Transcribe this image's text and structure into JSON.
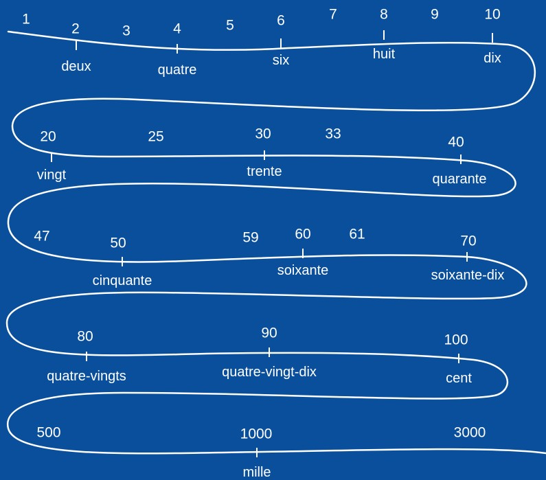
{
  "colors": {
    "background": "#0a4f9c",
    "foreground": "#ffffff"
  },
  "numbers": [
    "1",
    "2",
    "3",
    "4",
    "5",
    "6",
    "7",
    "8",
    "9",
    "10",
    "20",
    "25",
    "30",
    "33",
    "40",
    "47",
    "50",
    "59",
    "60",
    "61",
    "70",
    "80",
    "90",
    "100",
    "500",
    "1000",
    "3000"
  ],
  "words": [
    "deux",
    "quatre",
    "six",
    "huit",
    "dix",
    "vingt",
    "trente",
    "quarante",
    "cinquante",
    "soixante",
    "soixante-dix",
    "quatre-vingts",
    "quatre-vingt-dix",
    "cent",
    "mille"
  ]
}
